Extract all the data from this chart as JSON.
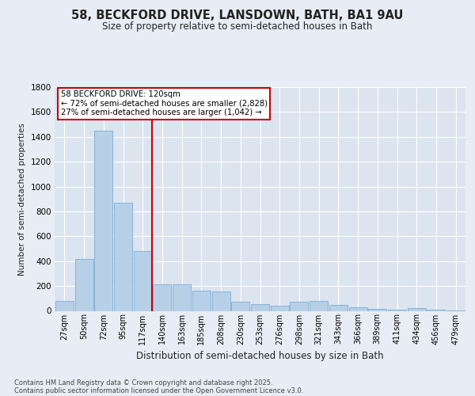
{
  "title": "58, BECKFORD DRIVE, LANSDOWN, BATH, BA1 9AU",
  "subtitle": "Size of property relative to semi-detached houses in Bath",
  "xlabel": "Distribution of semi-detached houses by size in Bath",
  "ylabel": "Number of semi-detached properties",
  "annotation_title": "58 BECKFORD DRIVE: 120sqm",
  "annotation_line1": "← 72% of semi-detached houses are smaller (2,828)",
  "annotation_line2": "27% of semi-detached houses are larger (1,042) →",
  "footnote1": "Contains HM Land Registry data © Crown copyright and database right 2025.",
  "footnote2": "Contains public sector information licensed under the Open Government Licence v3.0.",
  "categories": [
    "27sqm",
    "50sqm",
    "72sqm",
    "95sqm",
    "117sqm",
    "140sqm",
    "163sqm",
    "185sqm",
    "208sqm",
    "230sqm",
    "253sqm",
    "276sqm",
    "298sqm",
    "321sqm",
    "343sqm",
    "366sqm",
    "389sqm",
    "411sqm",
    "434sqm",
    "456sqm",
    "479sqm"
  ],
  "values": [
    80,
    420,
    1450,
    870,
    480,
    215,
    215,
    160,
    155,
    75,
    55,
    40,
    75,
    80,
    50,
    28,
    18,
    10,
    22,
    8,
    4
  ],
  "bar_color": "#b8cfe8",
  "bar_edge_color": "#7aafd4",
  "marker_color": "#cc0000",
  "bg_color": "#e8edf5",
  "plot_bg_color": "#dce4f0",
  "grid_color": "#ffffff",
  "ylim": [
    0,
    1800
  ],
  "yticks": [
    0,
    200,
    400,
    600,
    800,
    1000,
    1200,
    1400,
    1600,
    1800
  ],
  "property_line_x": 4.47
}
